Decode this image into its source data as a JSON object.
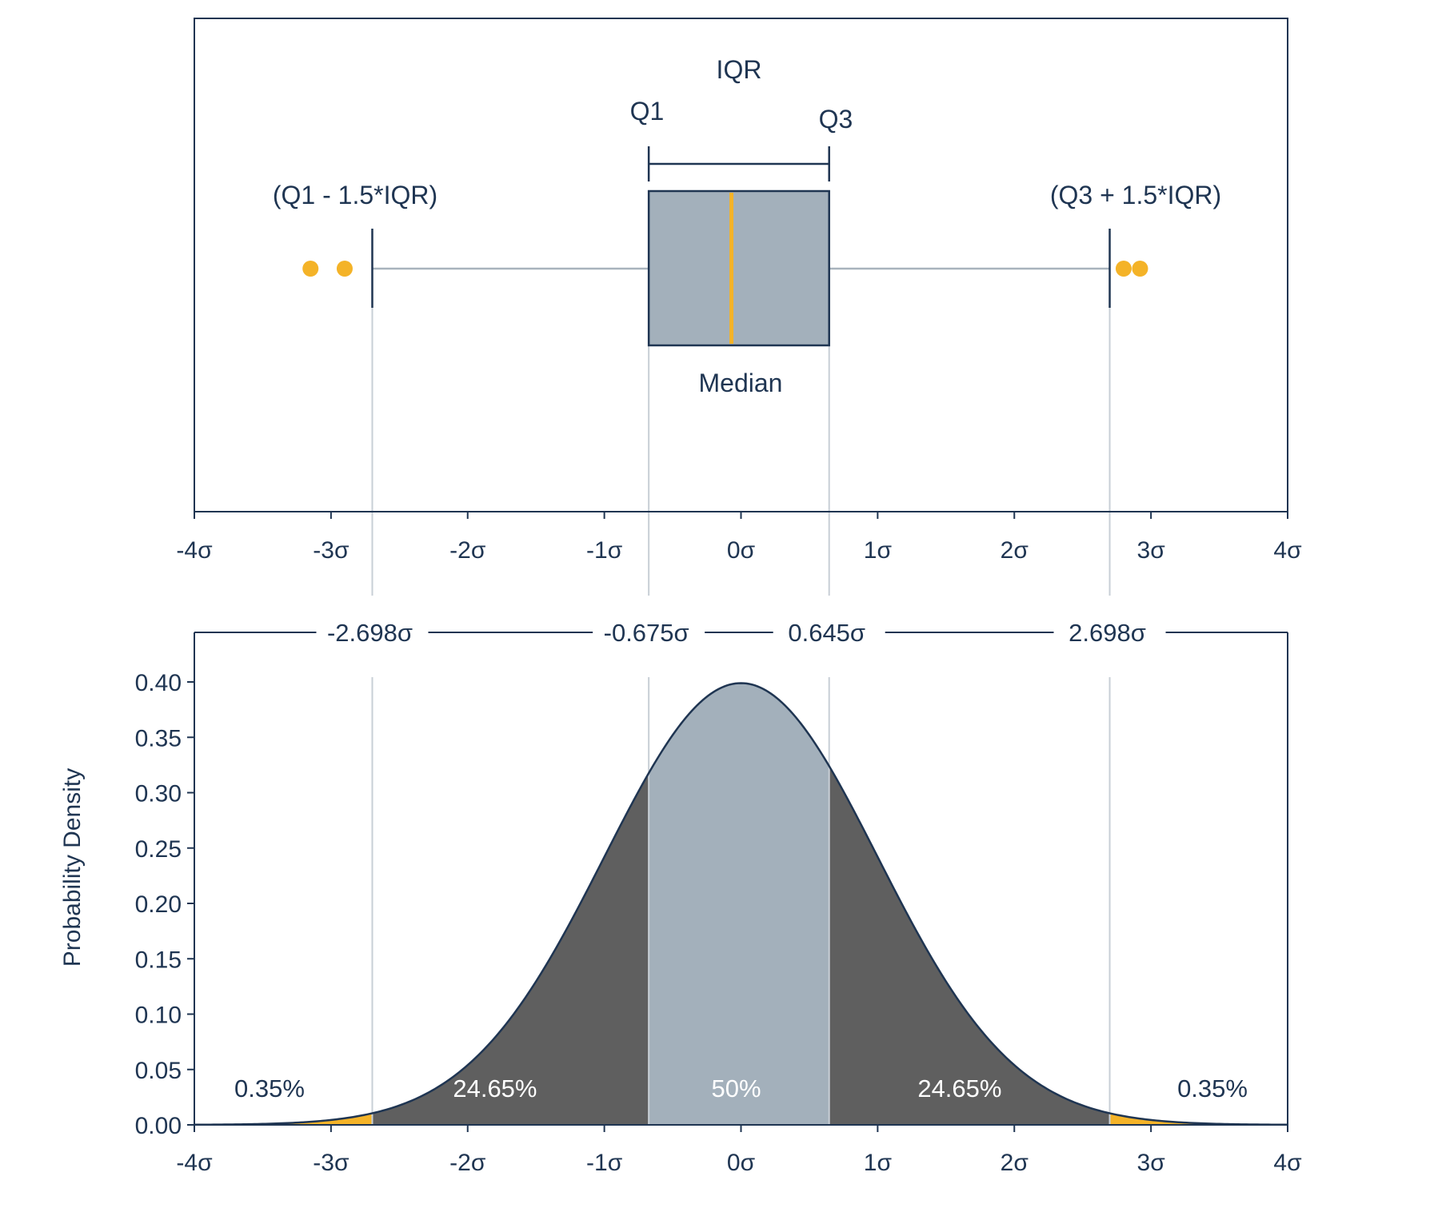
{
  "colors": {
    "ink": "#1f3552",
    "box_fill": "#a3b0bb",
    "tail_fill": "#5f5f5f",
    "accent": "#f4b328",
    "guide": "#c8cfd6",
    "whisker": "#a8b3bd"
  },
  "chart_data": [
    {
      "type": "box",
      "x_unit": "σ",
      "xlim": [
        -4,
        4
      ],
      "x_ticks": [
        -4,
        -3,
        -2,
        -1,
        0,
        1,
        2,
        3,
        4
      ],
      "x_tick_labels": [
        "-4σ",
        "-3σ",
        "-2σ",
        "-1σ",
        "0σ",
        "1σ",
        "2σ",
        "3σ",
        "4σ"
      ],
      "box": {
        "whisker_low": -2.698,
        "q1": -0.675,
        "median": -0.07,
        "q3": 0.645,
        "whisker_high": 2.698
      },
      "outliers": [
        -3.15,
        -2.9,
        2.8,
        2.92
      ],
      "annotations": {
        "iqr": "IQR",
        "q1": "Q1",
        "q3": "Q3",
        "lower_fence": "(Q1 - 1.5*IQR)",
        "upper_fence": "(Q3 + 1.5*IQR)",
        "median": "Median"
      }
    },
    {
      "type": "area",
      "x_unit": "σ",
      "xlim": [
        -4,
        4
      ],
      "ylim": [
        0,
        0.4
      ],
      "ylabel": "Probability Density",
      "x_ticks": [
        -4,
        -3,
        -2,
        -1,
        0,
        1,
        2,
        3,
        4
      ],
      "x_tick_labels": [
        "-4σ",
        "-3σ",
        "-2σ",
        "-1σ",
        "0σ",
        "1σ",
        "2σ",
        "3σ",
        "4σ"
      ],
      "y_ticks": [
        0,
        0.05,
        0.1,
        0.15,
        0.2,
        0.25,
        0.3,
        0.35,
        0.4
      ],
      "y_tick_labels": [
        "0.00",
        "0.05",
        "0.10",
        "0.15",
        "0.20",
        "0.25",
        "0.30",
        "0.35",
        "0.40"
      ],
      "distribution": {
        "name": "normal",
        "mean": 0,
        "sd": 1,
        "peak": 0.3989
      },
      "boundaries": [
        {
          "x": -2.698,
          "label": "-2.698σ"
        },
        {
          "x": -0.675,
          "label": "-0.675σ"
        },
        {
          "x": 0.645,
          "label": "0.645σ"
        },
        {
          "x": 2.698,
          "label": "2.698σ"
        }
      ],
      "regions": [
        {
          "from": -4,
          "to": -2.698,
          "label": "0.35%",
          "fill": "accent",
          "percent": 0.35
        },
        {
          "from": -2.698,
          "to": -0.675,
          "label": "24.65%",
          "fill": "tail",
          "percent": 24.65
        },
        {
          "from": -0.675,
          "to": 0.645,
          "label": "50%",
          "fill": "box",
          "percent": 50
        },
        {
          "from": 0.645,
          "to": 2.698,
          "label": "24.65%",
          "fill": "tail",
          "percent": 24.65
        },
        {
          "from": 2.698,
          "to": 4,
          "label": "0.35%",
          "fill": "accent",
          "percent": 0.35
        }
      ]
    }
  ]
}
